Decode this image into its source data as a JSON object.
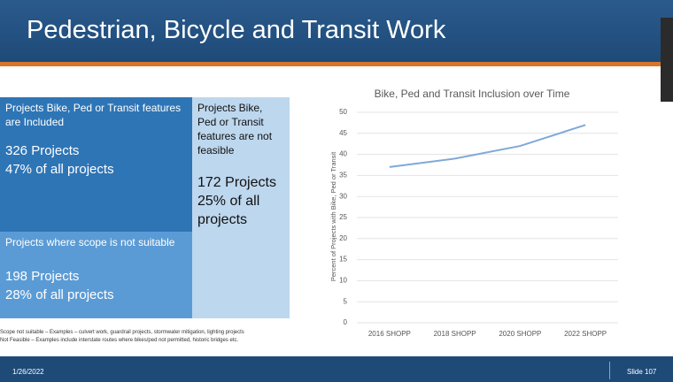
{
  "header": {
    "title": "Pedestrian, Bicycle and Transit Work"
  },
  "boxes": [
    {
      "label": "Projects Bike, Ped or Transit features are Included",
      "count": "326 Projects",
      "share": "47% of all projects"
    },
    {
      "label": "Projects Bike, Ped or Transit features are not feasible",
      "count": "172 Projects",
      "share": "25% of all projects"
    },
    {
      "label": "Projects where scope is not suitable",
      "count": "198 Projects",
      "share": "28% of all projects"
    }
  ],
  "notes": [
    "Scope not suitable – Examples – culvert work, guardrail projects, stormwater mitigation, lighting projects",
    "Not Feasible – Examples include interstate routes where bikes/ped not permitted, historic bridges etc."
  ],
  "footer": {
    "date": "1/26/2022",
    "slide": "Slide 107"
  },
  "chart_data": {
    "type": "line",
    "title": "Bike, Ped and Transit Inclusion over Time",
    "y_label": "Percent of Projects with Bike, Ped or Transit",
    "categories": [
      "2016 SHOPP",
      "2018 SHOPP",
      "2020 SHOPP",
      "2022 SHOPP"
    ],
    "values": [
      37,
      39,
      42,
      47
    ],
    "color": "#7fa9d8",
    "ylim": [
      0,
      50
    ],
    "yticks": [
      0,
      5,
      10,
      15,
      20,
      25,
      30,
      35,
      40,
      45,
      50
    ],
    "grid": true
  }
}
